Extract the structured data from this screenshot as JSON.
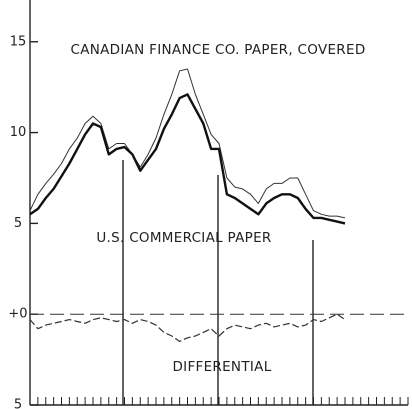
{
  "chart_data": {
    "type": "line",
    "annotations": [
      "CANADIAN FINANCE CO. PAPER, COVERED",
      "U.S. COMMERCIAL PAPER",
      "DIFFERENTIAL"
    ],
    "series": [
      {
        "name": "CANADIAN FINANCE CO. PAPER, COVERED",
        "color": "#333333",
        "width": 1,
        "values": [
          5.7,
          6.6,
          7.2,
          7.7,
          8.3,
          9.1,
          9.7,
          10.5,
          10.9,
          10.5,
          9.1,
          9.4,
          9.4,
          8.8,
          8.1,
          8.8,
          9.7,
          11.0,
          12.1,
          13.4,
          13.5,
          12.1,
          11.0,
          9.9,
          9.4,
          7.5,
          7.0,
          6.9,
          6.6,
          6.1,
          6.9,
          7.2,
          7.2,
          7.5,
          7.5,
          6.6,
          5.7,
          5.5,
          5.4,
          5.4,
          5.3
        ]
      },
      {
        "name": "U.S. COMMERCIAL PAPER",
        "color": "#111111",
        "width": 2.4,
        "values": [
          5.5,
          5.8,
          6.4,
          6.9,
          7.6,
          8.3,
          9.1,
          9.9,
          10.5,
          10.3,
          8.8,
          9.1,
          9.2,
          8.8,
          7.9,
          8.5,
          9.1,
          10.2,
          11.0,
          11.9,
          12.1,
          11.3,
          10.5,
          9.1,
          9.1,
          6.6,
          6.4,
          6.1,
          5.8,
          5.5,
          6.1,
          6.4,
          6.6,
          6.6,
          6.4,
          5.8,
          5.3,
          5.3,
          5.2,
          5.1,
          5.0
        ]
      },
      {
        "name": "DIFFERENTIAL",
        "color": "#333333",
        "width": 1.2,
        "dashed": true,
        "values": [
          -0.3,
          -0.8,
          -0.6,
          -0.5,
          -0.4,
          -0.3,
          -0.4,
          -0.5,
          -0.3,
          -0.2,
          -0.3,
          -0.4,
          -0.3,
          -0.5,
          -0.3,
          -0.4,
          -0.6,
          -1.0,
          -1.2,
          -1.5,
          -1.3,
          -1.2,
          -1.0,
          -0.8,
          -1.2,
          -0.8,
          -0.6,
          -0.7,
          -0.8,
          -0.6,
          -0.5,
          -0.7,
          -0.6,
          -0.5,
          -0.7,
          -0.6,
          -0.3,
          -0.4,
          -0.2,
          0,
          -0.3
        ]
      }
    ],
    "xlim": [
      0,
      48
    ],
    "xticks": [
      0,
      1,
      2,
      3,
      4,
      5,
      6,
      7,
      8,
      9,
      10,
      11,
      12,
      13,
      14,
      15,
      16,
      17,
      18,
      19,
      20,
      21,
      22,
      23,
      24,
      25,
      26,
      27,
      28,
      29,
      30,
      31,
      32,
      33,
      34,
      35,
      36,
      37,
      38,
      39,
      40,
      41,
      42,
      43,
      44,
      45,
      46,
      47,
      48
    ],
    "ylim": [
      -5,
      17.3
    ],
    "yticks": [
      {
        "value": -5,
        "label": "5"
      },
      5,
      10,
      15,
      {
        "value": 0,
        "label": "+0"
      }
    ]
  }
}
